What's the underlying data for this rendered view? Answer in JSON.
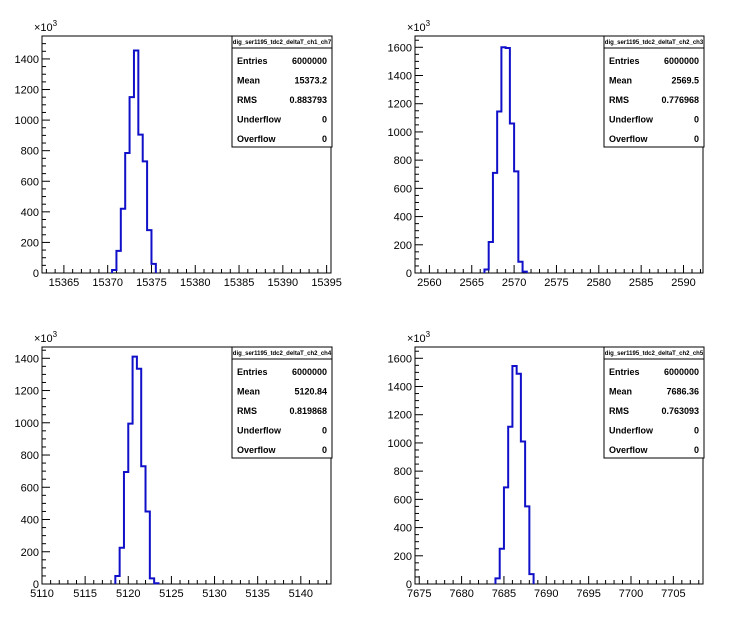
{
  "chart_data": [
    {
      "type": "histogram",
      "title": "dig_ser1195_tdc2_deltaT_ch1_ch7",
      "y_exponent_base": "10",
      "y_exponent_power": "3",
      "xlim": [
        15362.5,
        15395.5
      ],
      "ylim": [
        0,
        1550
      ],
      "x_ticks": [
        15365,
        15370,
        15375,
        15380,
        15385,
        15390,
        15395
      ],
      "y_ticks": [
        0,
        200,
        400,
        600,
        800,
        1000,
        1200,
        1400
      ],
      "bin_width": 0.5,
      "bins_x": [
        15370.5,
        15371.0,
        15371.5,
        15372.0,
        15372.5,
        15373.0,
        15373.5,
        15374.0,
        15374.5,
        15375.0
      ],
      "bins_y": [
        20,
        145,
        420,
        785,
        1150,
        1455,
        905,
        730,
        280,
        60
      ],
      "stats": {
        "Entries": "6000000",
        "Mean": "15373.2",
        "RMS": "0.883793",
        "Underflow": "0",
        "Overflow": "0"
      },
      "stat_labels": [
        "Entries",
        "Mean",
        "RMS",
        "Underflow",
        "Overflow"
      ]
    },
    {
      "type": "histogram",
      "title": "dig_ser1195_tdc2_deltaT_ch2_ch3",
      "y_exponent_base": "10",
      "y_exponent_power": "3",
      "xlim": [
        2558.3,
        2592.3
      ],
      "ylim": [
        0,
        1680
      ],
      "x_ticks": [
        2560,
        2565,
        2570,
        2575,
        2580,
        2585,
        2590
      ],
      "y_ticks": [
        0,
        200,
        400,
        600,
        800,
        1000,
        1200,
        1400,
        1600
      ],
      "bin_width": 0.5,
      "bins_x": [
        2566.5,
        2567.0,
        2567.5,
        2568.0,
        2568.5,
        2569.0,
        2569.5,
        2570.0,
        2570.5,
        2571.0
      ],
      "bins_y": [
        25,
        220,
        710,
        1145,
        1600,
        1595,
        1060,
        720,
        80,
        10
      ],
      "stats": {
        "Entries": "6000000",
        "Mean": "2569.5",
        "RMS": "0.776968",
        "Underflow": "0",
        "Overflow": "0"
      },
      "stat_labels": [
        "Entries",
        "Mean",
        "RMS",
        "Underflow",
        "Overflow"
      ]
    },
    {
      "type": "histogram",
      "title": "dig_ser1195_tdc2_deltaT_ch2_ch4",
      "y_exponent_base": "10",
      "y_exponent_power": "3",
      "xlim": [
        5110,
        5143.5
      ],
      "ylim": [
        0,
        1470
      ],
      "x_ticks": [
        5110,
        5115,
        5120,
        5125,
        5130,
        5135,
        5140
      ],
      "y_ticks": [
        0,
        200,
        400,
        600,
        800,
        1000,
        1200,
        1400
      ],
      "bin_width": 0.5,
      "bins_x": [
        5118.5,
        5119.0,
        5119.5,
        5120.0,
        5120.5,
        5121.0,
        5121.5,
        5122.0,
        5122.5,
        5123.0
      ],
      "bins_y": [
        50,
        225,
        695,
        995,
        1410,
        1335,
        730,
        450,
        35,
        5
      ],
      "stats": {
        "Entries": "6000000",
        "Mean": "5120.84",
        "RMS": "0.819868",
        "Underflow": "0",
        "Overflow": "0"
      },
      "stat_labels": [
        "Entries",
        "Mean",
        "RMS",
        "Underflow",
        "Overflow"
      ]
    },
    {
      "type": "histogram",
      "title": "dig_ser1195_tdc2_deltaT_ch2_ch5",
      "y_exponent_base": "10",
      "y_exponent_power": "3",
      "xlim": [
        7674.5,
        7708.5
      ],
      "ylim": [
        0,
        1680
      ],
      "x_ticks": [
        7675,
        7680,
        7685,
        7690,
        7695,
        7700,
        7705
      ],
      "y_ticks": [
        0,
        200,
        400,
        600,
        800,
        1000,
        1200,
        1400,
        1600
      ],
      "bin_width": 0.5,
      "bins_x": [
        7684.0,
        7684.5,
        7685.0,
        7685.5,
        7686.0,
        7686.5,
        7687.0,
        7687.5,
        7688.0
      ],
      "bins_y": [
        40,
        250,
        685,
        1115,
        1545,
        1490,
        1010,
        550,
        70
      ],
      "stats": {
        "Entries": "6000000",
        "Mean": "7686.36",
        "RMS": "0.763093",
        "Underflow": "0",
        "Overflow": "0"
      },
      "stat_labels": [
        "Entries",
        "Mean",
        "RMS",
        "Underflow",
        "Overflow"
      ]
    }
  ],
  "colors": {
    "histogram_line": "#1010c8",
    "axis": "#000000",
    "background": "#ffffff"
  }
}
